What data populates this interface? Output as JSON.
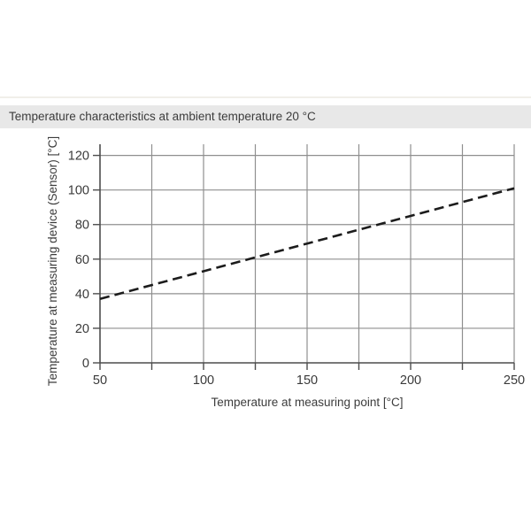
{
  "page": {
    "background": "#ffffff"
  },
  "header": {
    "title": "Temperature characteristics at ambient temperature 20 °C",
    "background": "#e8e8e8",
    "text_color": "#3c3c3c"
  },
  "chart_data": {
    "type": "line",
    "title": "Temperature characteristics at ambient temperature 20 °C",
    "xlabel": "Temperature at measuring point [°C]",
    "ylabel": "Temperature at measuring device (Sensor) [°C]",
    "series": [
      {
        "name": "sensor-temperature-curve",
        "x": [
          50,
          100,
          150,
          200,
          250
        ],
        "y": [
          37,
          53,
          69,
          85,
          101
        ],
        "style": "dashed",
        "color": "#1c1c1c"
      }
    ],
    "xlim": [
      50,
      250
    ],
    "ylim": [
      0,
      120
    ],
    "x_tick_labels": [
      50,
      100,
      150,
      200,
      250
    ],
    "x_ticks_all": [
      50,
      75,
      100,
      125,
      150,
      175,
      200,
      225,
      250
    ],
    "y_ticks": [
      0,
      20,
      40,
      60,
      80,
      100,
      120
    ],
    "grid": "on",
    "legend": "none",
    "grid_color": "#8f8f8f",
    "axis_color": "#4d4d4d",
    "tick_text_color": "#3a3a3a",
    "label_text_color": "#3c3c3c"
  }
}
